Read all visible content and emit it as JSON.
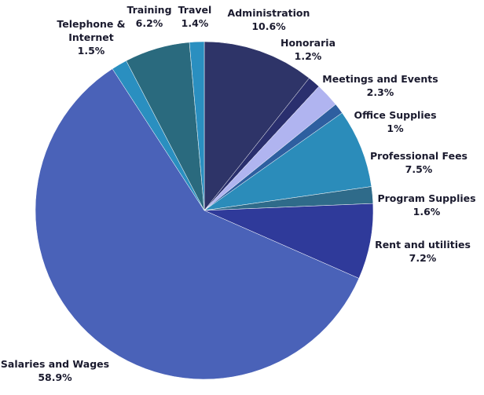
{
  "chart_data": {
    "type": "pie",
    "categories": [
      "Administration",
      "Honoraria",
      "Meetings and Events",
      "Office Supplies",
      "Professional Fees",
      "Program Supplies",
      "Rent and utilities",
      "Salaries and Wages",
      "Telephone & Internet",
      "Training",
      "Travel"
    ],
    "values": [
      10.6,
      1.2,
      2.3,
      1,
      7.5,
      1.6,
      7.2,
      58.9,
      1.5,
      6.2,
      1.4
    ],
    "value_labels": [
      "10.6%",
      "1.2%",
      "2.3%",
      "1%",
      "7.5%",
      "1.6%",
      "7.2%",
      "58.9%",
      "1.5%",
      "6.2%",
      "1.4%"
    ],
    "colors": [
      "#2e3468",
      "#2a2f6e",
      "#b0b4f0",
      "#2e5fa0",
      "#2b8cba",
      "#2f6b8a",
      "#2f3a9a",
      "#4a62b8",
      "#2a8fc0",
      "#2a6a7e",
      "#2a8fc0"
    ]
  }
}
